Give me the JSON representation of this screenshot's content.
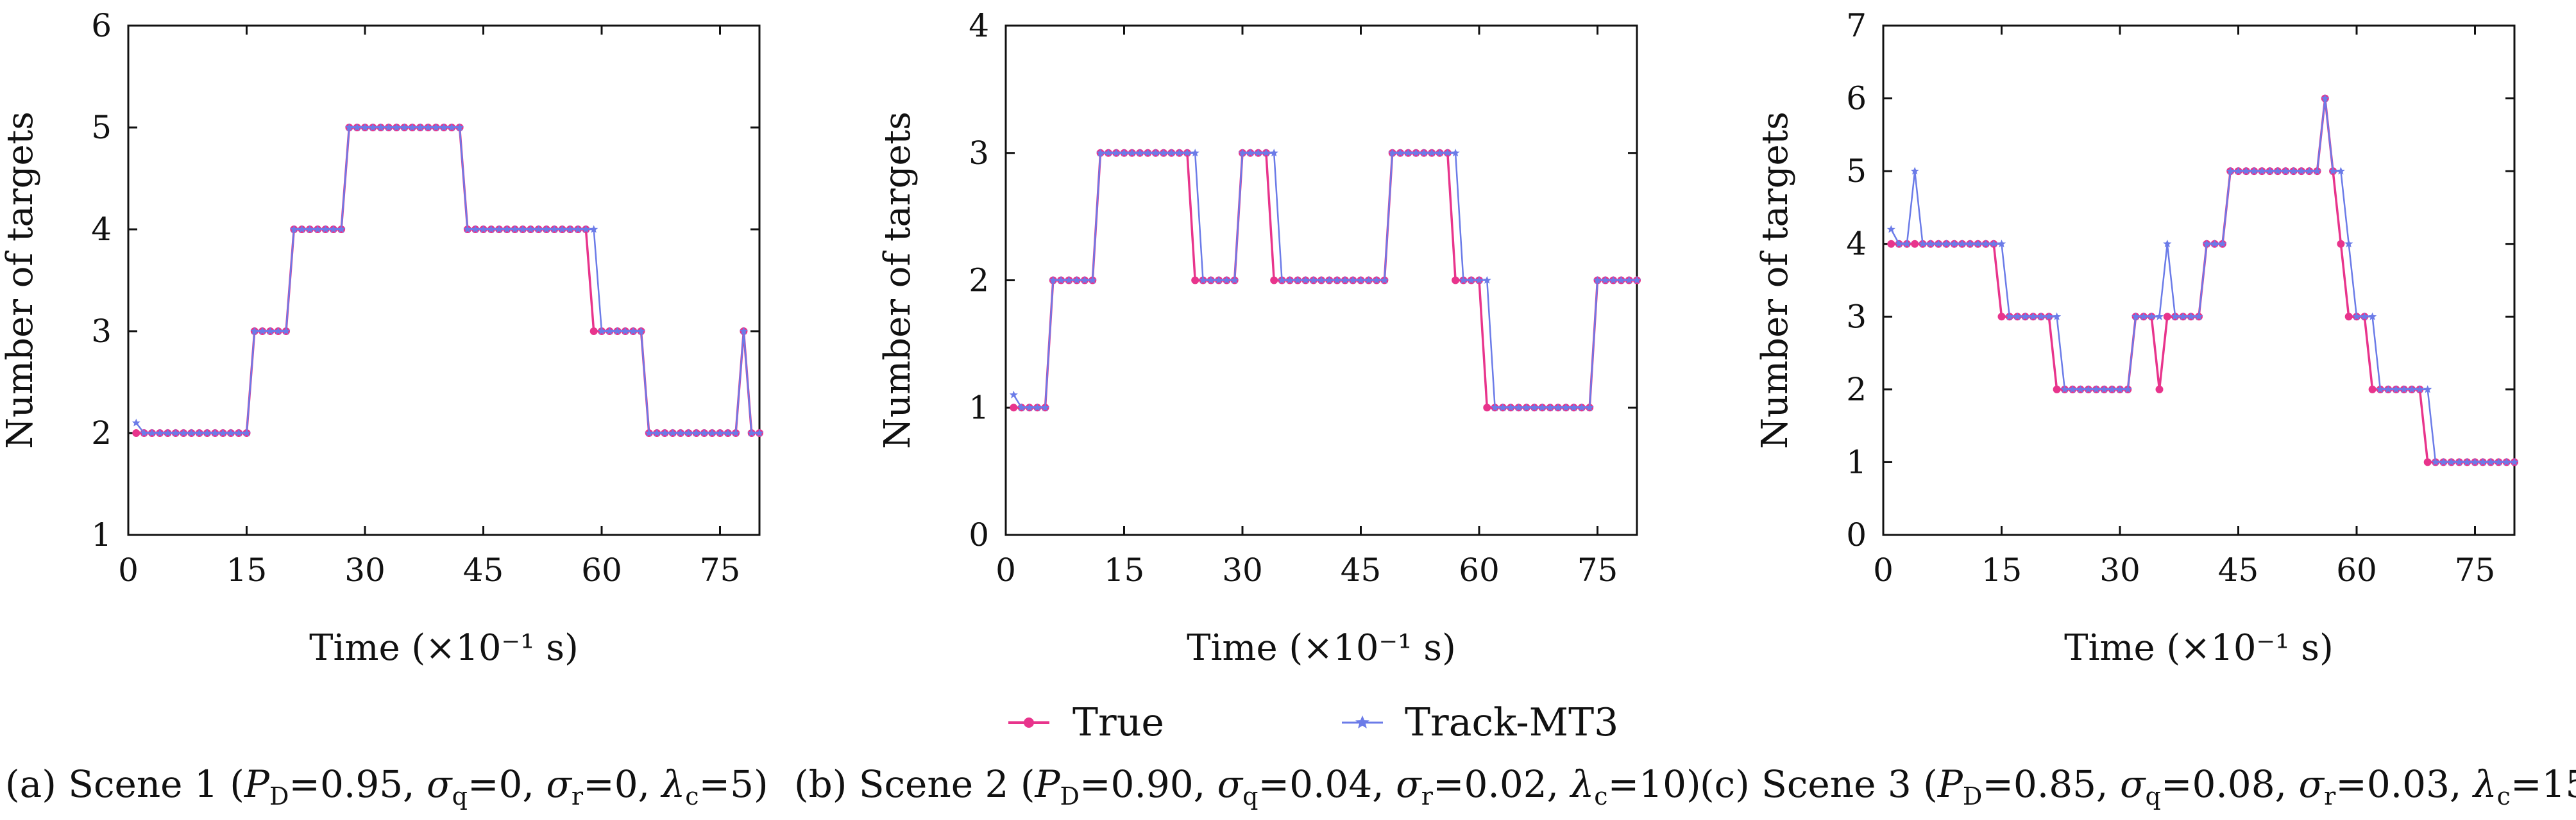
{
  "legend": {
    "true_label": "True",
    "track_label": "Track-MT3",
    "true_color": "#e8348c",
    "track_color": "#6b7be8"
  },
  "chart_data": [
    {
      "type": "line",
      "caption_id": "(a)",
      "caption_prefix": "Scene 1 (",
      "caption_params": {
        "PD": "0.95",
        "sq": "0",
        "sr": "0",
        "lc": "5"
      },
      "xlabel": "Time (×10⁻¹ s)",
      "ylabel": "Number of targets",
      "xlim": [
        0,
        80
      ],
      "ylim": [
        1,
        6
      ],
      "xticks": [
        0,
        15,
        30,
        45,
        60,
        75
      ],
      "yticks": [
        1,
        2,
        3,
        4,
        5,
        6
      ],
      "series": [
        {
          "name": "True",
          "color": "#e8348c",
          "x": [
            1,
            2,
            3,
            4,
            5,
            6,
            7,
            8,
            9,
            10,
            11,
            12,
            13,
            14,
            15,
            16,
            17,
            18,
            19,
            20,
            21,
            22,
            23,
            24,
            25,
            26,
            27,
            28,
            29,
            30,
            31,
            32,
            33,
            34,
            35,
            36,
            37,
            38,
            39,
            40,
            41,
            42,
            43,
            44,
            45,
            46,
            47,
            48,
            49,
            50,
            51,
            52,
            53,
            54,
            55,
            56,
            57,
            58,
            59,
            60,
            61,
            62,
            63,
            64,
            65,
            66,
            67,
            68,
            69,
            70,
            71,
            72,
            73,
            74,
            75,
            76,
            77,
            78,
            79,
            80
          ],
          "y": [
            2,
            2,
            2,
            2,
            2,
            2,
            2,
            2,
            2,
            2,
            2,
            2,
            2,
            2,
            2,
            3,
            3,
            3,
            3,
            3,
            4,
            4,
            4,
            4,
            4,
            4,
            4,
            5,
            5,
            5,
            5,
            5,
            5,
            5,
            5,
            5,
            5,
            5,
            5,
            5,
            5,
            5,
            4,
            4,
            4,
            4,
            4,
            4,
            4,
            4,
            4,
            4,
            4,
            4,
            4,
            4,
            4,
            4,
            3,
            3,
            3,
            3,
            3,
            3,
            3,
            2,
            2,
            2,
            2,
            2,
            2,
            2,
            2,
            2,
            2,
            2,
            2,
            3,
            2,
            2
          ]
        },
        {
          "name": "Track-MT3",
          "color": "#6b7be8",
          "x": [
            1,
            2,
            3,
            4,
            5,
            6,
            7,
            8,
            9,
            10,
            11,
            12,
            13,
            14,
            15,
            16,
            17,
            18,
            19,
            20,
            21,
            22,
            23,
            24,
            25,
            26,
            27,
            28,
            29,
            30,
            31,
            32,
            33,
            34,
            35,
            36,
            37,
            38,
            39,
            40,
            41,
            42,
            43,
            44,
            45,
            46,
            47,
            48,
            49,
            50,
            51,
            52,
            53,
            54,
            55,
            56,
            57,
            58,
            59,
            60,
            61,
            62,
            63,
            64,
            65,
            66,
            67,
            68,
            69,
            70,
            71,
            72,
            73,
            74,
            75,
            76,
            77,
            78,
            79,
            80
          ],
          "y": [
            2.1,
            2,
            2,
            2,
            2,
            2,
            2,
            2,
            2,
            2,
            2,
            2,
            2,
            2,
            2,
            3,
            3,
            3,
            3,
            3,
            4,
            4,
            4,
            4,
            4,
            4,
            4,
            5,
            5,
            5,
            5,
            5,
            5,
            5,
            5,
            5,
            5,
            5,
            5,
            5,
            5,
            5,
            4,
            4,
            4,
            4,
            4,
            4,
            4,
            4,
            4,
            4,
            4,
            4,
            4,
            4,
            4,
            4,
            4,
            3,
            3,
            3,
            3,
            3,
            3,
            2,
            2,
            2,
            2,
            2,
            2,
            2,
            2,
            2,
            2,
            2,
            2,
            3,
            2,
            2
          ]
        }
      ]
    },
    {
      "type": "line",
      "caption_id": "(b)",
      "caption_prefix": "Scene 2 (",
      "caption_params": {
        "PD": "0.90",
        "sq": "0.04",
        "sr": "0.02",
        "lc": "10"
      },
      "xlabel": "Time (×10⁻¹ s)",
      "ylabel": "Number of targets",
      "xlim": [
        0,
        80
      ],
      "ylim": [
        0,
        4
      ],
      "xticks": [
        0,
        15,
        30,
        45,
        60,
        75
      ],
      "yticks": [
        0,
        1,
        2,
        3,
        4
      ],
      "series": [
        {
          "name": "True",
          "color": "#e8348c",
          "x": [
            1,
            2,
            3,
            4,
            5,
            6,
            7,
            8,
            9,
            10,
            11,
            12,
            13,
            14,
            15,
            16,
            17,
            18,
            19,
            20,
            21,
            22,
            23,
            24,
            25,
            26,
            27,
            28,
            29,
            30,
            31,
            32,
            33,
            34,
            35,
            36,
            37,
            38,
            39,
            40,
            41,
            42,
            43,
            44,
            45,
            46,
            47,
            48,
            49,
            50,
            51,
            52,
            53,
            54,
            55,
            56,
            57,
            58,
            59,
            60,
            61,
            62,
            63,
            64,
            65,
            66,
            67,
            68,
            69,
            70,
            71,
            72,
            73,
            74,
            75,
            76,
            77,
            78,
            79,
            80
          ],
          "y": [
            1,
            1,
            1,
            1,
            1,
            2,
            2,
            2,
            2,
            2,
            2,
            3,
            3,
            3,
            3,
            3,
            3,
            3,
            3,
            3,
            3,
            3,
            3,
            2,
            2,
            2,
            2,
            2,
            2,
            3,
            3,
            3,
            3,
            2,
            2,
            2,
            2,
            2,
            2,
            2,
            2,
            2,
            2,
            2,
            2,
            2,
            2,
            2,
            3,
            3,
            3,
            3,
            3,
            3,
            3,
            3,
            2,
            2,
            2,
            2,
            1,
            1,
            1,
            1,
            1,
            1,
            1,
            1,
            1,
            1,
            1,
            1,
            1,
            1,
            2,
            2,
            2,
            2,
            2,
            2
          ]
        },
        {
          "name": "Track-MT3",
          "color": "#6b7be8",
          "x": [
            1,
            2,
            3,
            4,
            5,
            6,
            7,
            8,
            9,
            10,
            11,
            12,
            13,
            14,
            15,
            16,
            17,
            18,
            19,
            20,
            21,
            22,
            23,
            24,
            25,
            26,
            27,
            28,
            29,
            30,
            31,
            32,
            33,
            34,
            35,
            36,
            37,
            38,
            39,
            40,
            41,
            42,
            43,
            44,
            45,
            46,
            47,
            48,
            49,
            50,
            51,
            52,
            53,
            54,
            55,
            56,
            57,
            58,
            59,
            60,
            61,
            62,
            63,
            64,
            65,
            66,
            67,
            68,
            69,
            70,
            71,
            72,
            73,
            74,
            75,
            76,
            77,
            78,
            79,
            80
          ],
          "y": [
            1.1,
            1,
            1,
            1,
            1,
            2,
            2,
            2,
            2,
            2,
            2,
            3,
            3,
            3,
            3,
            3,
            3,
            3,
            3,
            3,
            3,
            3,
            3,
            3,
            2,
            2,
            2,
            2,
            2,
            3,
            3,
            3,
            3,
            3,
            2,
            2,
            2,
            2,
            2,
            2,
            2,
            2,
            2,
            2,
            2,
            2,
            2,
            2,
            3,
            3,
            3,
            3,
            3,
            3,
            3,
            3,
            3,
            2,
            2,
            2,
            2,
            1,
            1,
            1,
            1,
            1,
            1,
            1,
            1,
            1,
            1,
            1,
            1,
            1,
            2,
            2,
            2,
            2,
            2,
            2
          ]
        }
      ]
    },
    {
      "type": "line",
      "caption_id": "(c)",
      "caption_prefix": "Scene 3 (",
      "caption_params": {
        "PD": "0.85",
        "sq": "0.08",
        "sr": "0.03",
        "lc": "15"
      },
      "xlabel": "Time (×10⁻¹ s)",
      "ylabel": "Number of targets",
      "xlim": [
        0,
        80
      ],
      "ylim": [
        0,
        7
      ],
      "xticks": [
        0,
        15,
        30,
        45,
        60,
        75
      ],
      "yticks": [
        0,
        1,
        2,
        3,
        4,
        5,
        6,
        7
      ],
      "series": [
        {
          "name": "True",
          "color": "#e8348c",
          "x": [
            1,
            2,
            3,
            4,
            5,
            6,
            7,
            8,
            9,
            10,
            11,
            12,
            13,
            14,
            15,
            16,
            17,
            18,
            19,
            20,
            21,
            22,
            23,
            24,
            25,
            26,
            27,
            28,
            29,
            30,
            31,
            32,
            33,
            34,
            35,
            36,
            37,
            38,
            39,
            40,
            41,
            42,
            43,
            44,
            45,
            46,
            47,
            48,
            49,
            50,
            51,
            52,
            53,
            54,
            55,
            56,
            57,
            58,
            59,
            60,
            61,
            62,
            63,
            64,
            65,
            66,
            67,
            68,
            69,
            70,
            71,
            72,
            73,
            74,
            75,
            76,
            77,
            78,
            79,
            80
          ],
          "y": [
            4,
            4,
            4,
            4,
            4,
            4,
            4,
            4,
            4,
            4,
            4,
            4,
            4,
            4,
            3,
            3,
            3,
            3,
            3,
            3,
            3,
            2,
            2,
            2,
            2,
            2,
            2,
            2,
            2,
            2,
            2,
            3,
            3,
            3,
            2,
            3,
            3,
            3,
            3,
            3,
            4,
            4,
            4,
            5,
            5,
            5,
            5,
            5,
            5,
            5,
            5,
            5,
            5,
            5,
            5,
            6,
            5,
            4,
            3,
            3,
            3,
            2,
            2,
            2,
            2,
            2,
            2,
            2,
            1,
            1,
            1,
            1,
            1,
            1,
            1,
            1,
            1,
            1,
            1,
            1
          ]
        },
        {
          "name": "Track-MT3",
          "color": "#6b7be8",
          "x": [
            1,
            2,
            3,
            4,
            5,
            6,
            7,
            8,
            9,
            10,
            11,
            12,
            13,
            14,
            15,
            16,
            17,
            18,
            19,
            20,
            21,
            22,
            23,
            24,
            25,
            26,
            27,
            28,
            29,
            30,
            31,
            32,
            33,
            34,
            35,
            36,
            37,
            38,
            39,
            40,
            41,
            42,
            43,
            44,
            45,
            46,
            47,
            48,
            49,
            50,
            51,
            52,
            53,
            54,
            55,
            56,
            57,
            58,
            59,
            60,
            61,
            62,
            63,
            64,
            65,
            66,
            67,
            68,
            69,
            70,
            71,
            72,
            73,
            74,
            75,
            76,
            77,
            78,
            79,
            80
          ],
          "y": [
            4.2,
            4,
            4,
            5,
            4,
            4,
            4,
            4,
            4,
            4,
            4,
            4,
            4,
            4,
            4,
            3,
            3,
            3,
            3,
            3,
            3,
            3,
            2,
            2,
            2,
            2,
            2,
            2,
            2,
            2,
            2,
            3,
            3,
            3,
            3,
            4,
            3,
            3,
            3,
            3,
            4,
            4,
            4,
            5,
            5,
            5,
            5,
            5,
            5,
            5,
            5,
            5,
            5,
            5,
            5,
            6,
            5,
            5,
            4,
            3,
            3,
            3,
            2,
            2,
            2,
            2,
            2,
            2,
            2,
            1,
            1,
            1,
            1,
            1,
            1,
            1,
            1,
            1,
            1,
            1
          ]
        }
      ]
    }
  ]
}
